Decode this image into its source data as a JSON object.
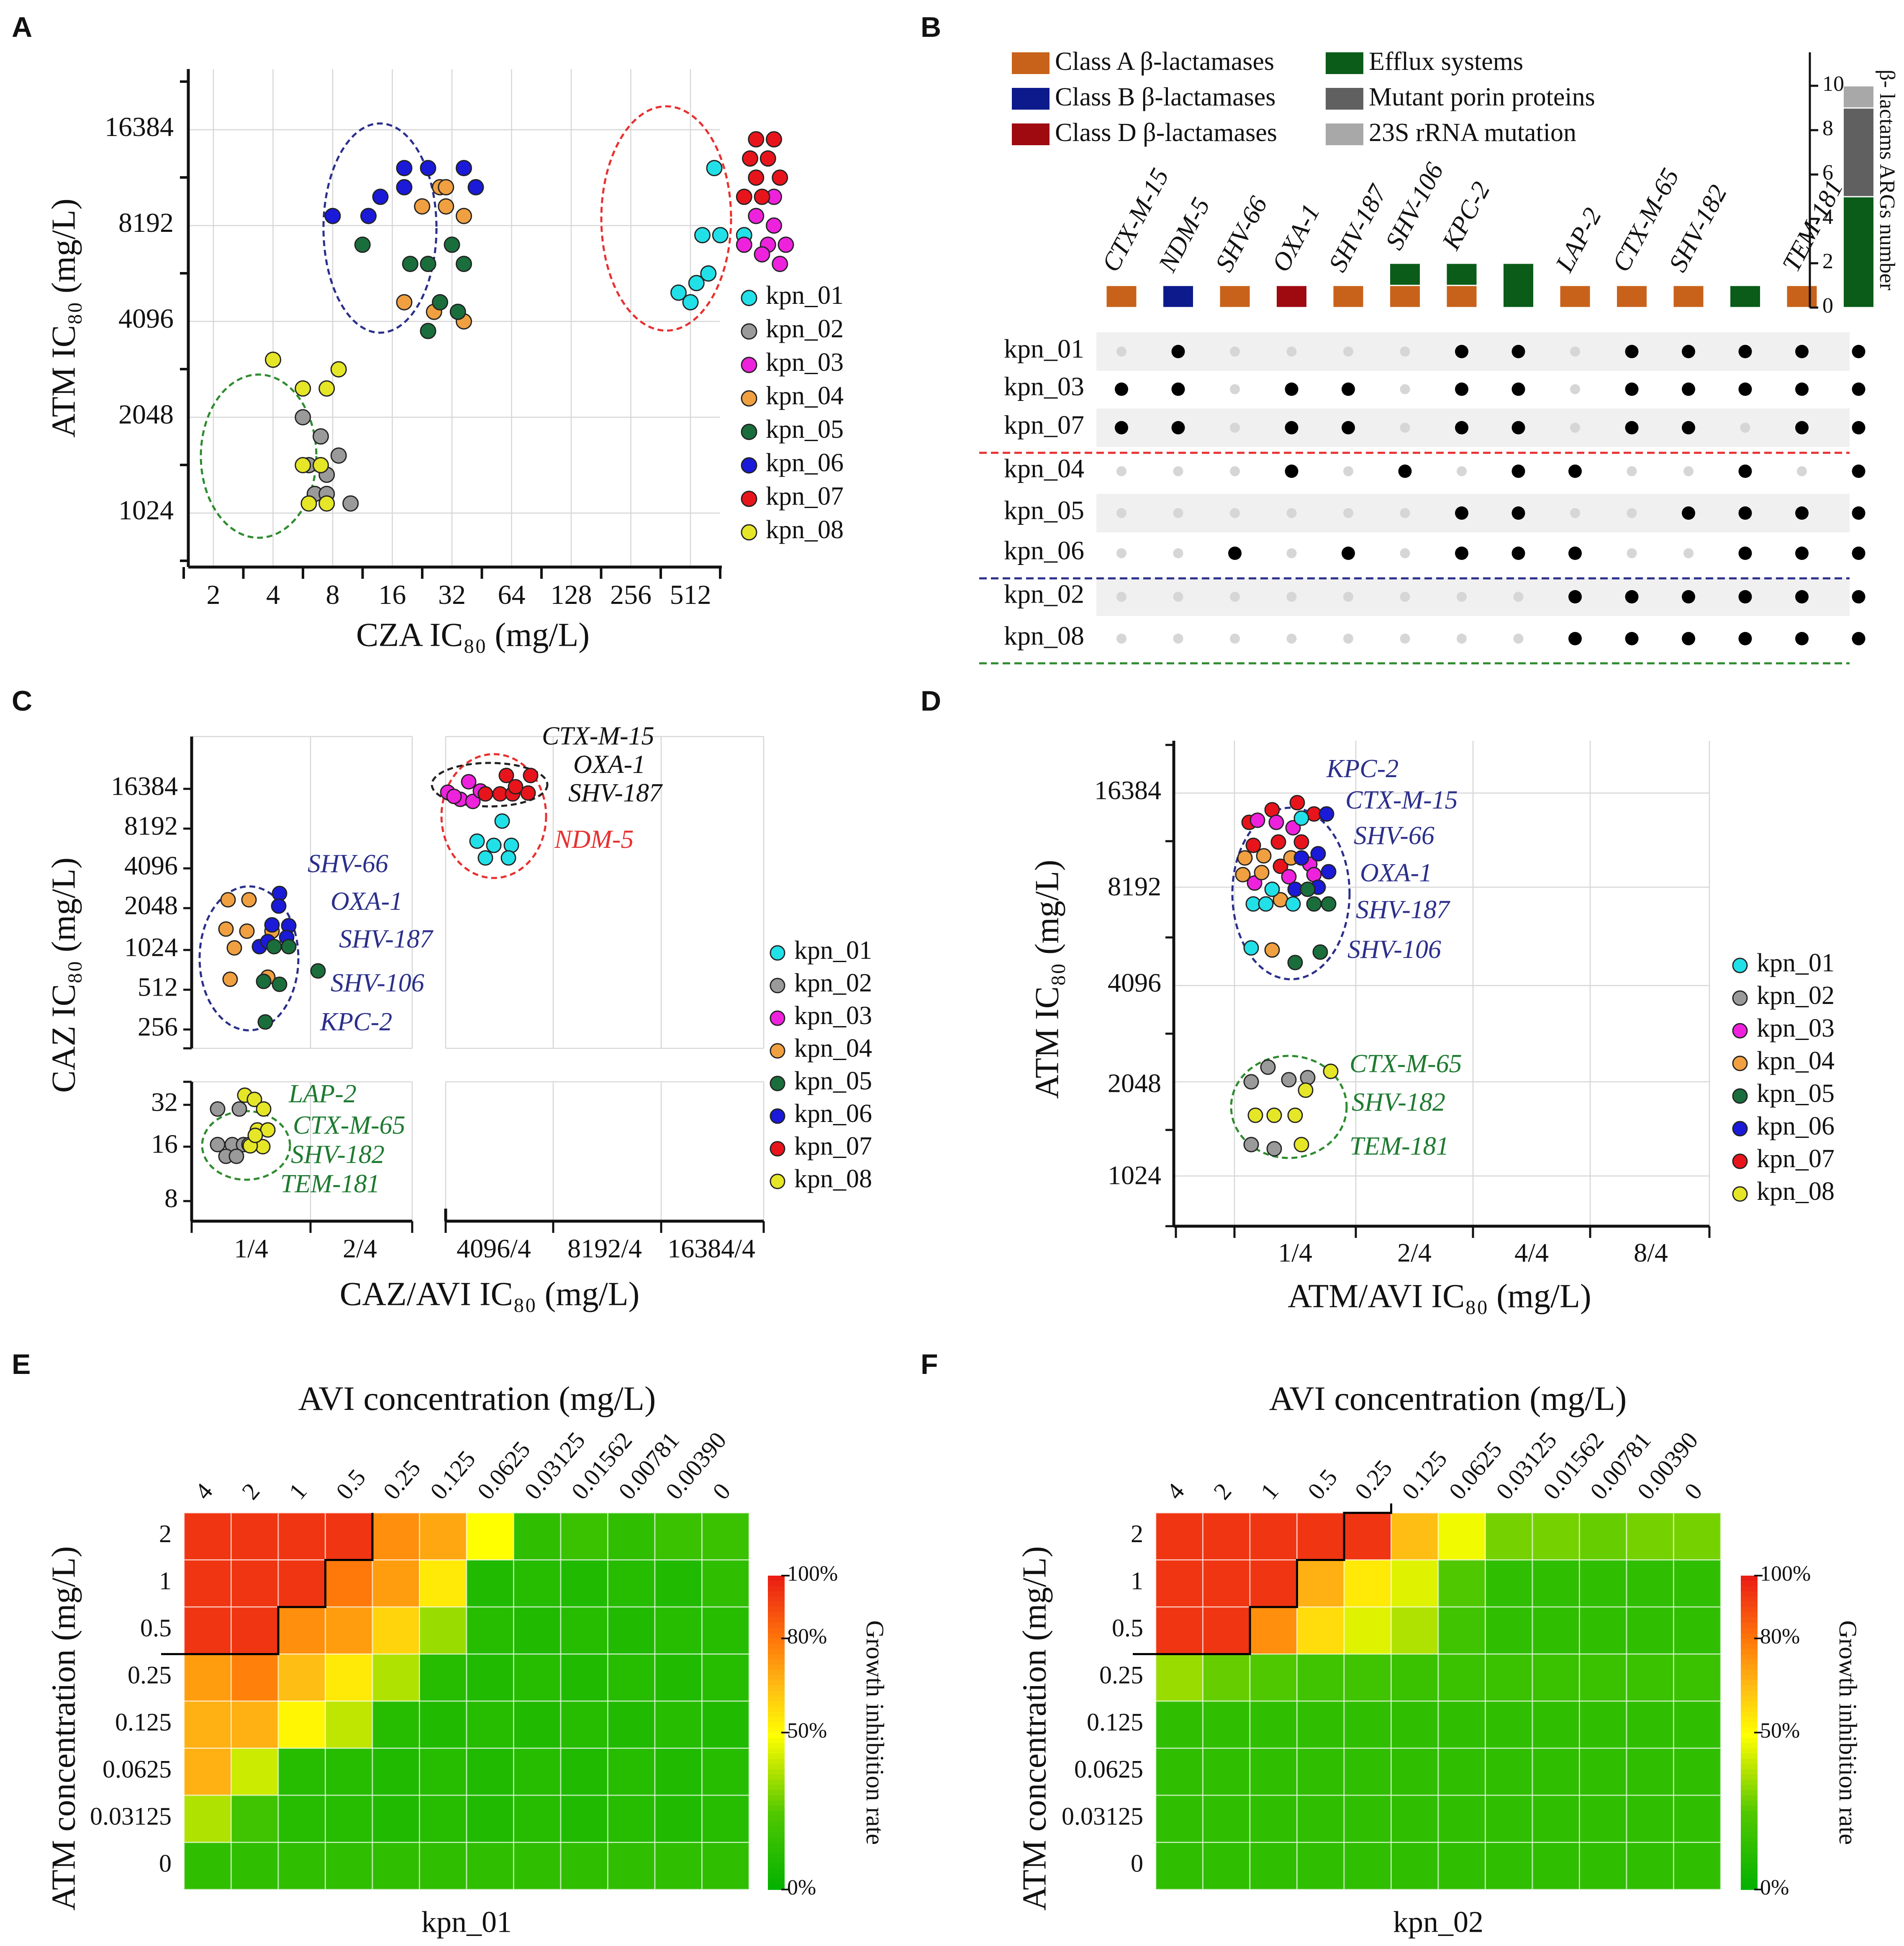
{
  "strains": [
    "kpn_01",
    "kpn_02",
    "kpn_03",
    "kpn_04",
    "kpn_05",
    "kpn_06",
    "kpn_07",
    "kpn_08"
  ],
  "strain_colors": {
    "kpn_01": "#22e0e8",
    "kpn_02": "#9a9a9a",
    "kpn_03": "#ee22dd",
    "kpn_04": "#f0a040",
    "kpn_05": "#1a6e3c",
    "kpn_06": "#1a1ad8",
    "kpn_07": "#e8141c",
    "kpn_08": "#e6e628"
  },
  "panel_letters": [
    "A",
    "B",
    "C",
    "D",
    "E",
    "F"
  ],
  "chart_data": [
    {
      "panel": "A",
      "type": "scatter",
      "xlabel": "CZA IC₈₀ (mg/L)",
      "ylabel": "ATM IC₈₀ (mg/L)",
      "xticks": [
        "2",
        "4",
        "8",
        "16",
        "32",
        "64",
        "128",
        "256",
        "512"
      ],
      "yticks": [
        "1024",
        "2048",
        "4096",
        "8192",
        "16384"
      ],
      "legend": [
        "kpn_01",
        "kpn_02",
        "kpn_03",
        "kpn_04",
        "kpn_05",
        "kpn_06",
        "kpn_07",
        "kpn_08"
      ],
      "points": {
        "kpn_01": [
          [
            9.4,
            13.6
          ],
          [
            9.2,
            12.9
          ],
          [
            9.5,
            12.9
          ],
          [
            8.8,
            12.3
          ],
          [
            9.3,
            12.5
          ],
          [
            9,
            12.2
          ],
          [
            9.1,
            12.4
          ],
          [
            9.9,
            12.9
          ]
        ],
        "kpn_02": [
          [
            2.5,
            11
          ],
          [
            2.8,
            10.8
          ],
          [
            3.1,
            10.6
          ],
          [
            2.6,
            10.5
          ],
          [
            2.9,
            10.4
          ],
          [
            2.7,
            10.2
          ],
          [
            2.9,
            10.2
          ],
          [
            3.3,
            10.1
          ]
        ],
        "kpn_03": [
          [
            10.4,
            13.3
          ],
          [
            10.1,
            13.1
          ],
          [
            10.4,
            13.0
          ],
          [
            10.3,
            12.8
          ],
          [
            10.6,
            12.8
          ],
          [
            9.9,
            12.8
          ],
          [
            10.2,
            12.7
          ],
          [
            10.5,
            12.6
          ]
        ],
        "kpn_04": [
          [
            4.8,
            13.4
          ],
          [
            4.9,
            13.2
          ],
          [
            4.5,
            13.2
          ],
          [
            5.2,
            13.1
          ],
          [
            4.2,
            12.2
          ],
          [
            4.7,
            12.1
          ],
          [
            5.2,
            12.0
          ],
          [
            4.9,
            13.4
          ]
        ],
        "kpn_05": [
          [
            3.5,
            12.8
          ],
          [
            4.3,
            12.6
          ],
          [
            5,
            12.8
          ],
          [
            4.6,
            12.6
          ],
          [
            4.8,
            12.2
          ],
          [
            4.6,
            11.9
          ],
          [
            5.1,
            12.1
          ],
          [
            5.2,
            12.6
          ]
        ],
        "kpn_06": [
          [
            3,
            13.1
          ],
          [
            3.8,
            13.3
          ],
          [
            4.2,
            13.4
          ],
          [
            5.4,
            13.4
          ],
          [
            3.6,
            13.1
          ],
          [
            5.2,
            13.6
          ],
          [
            4.6,
            13.6
          ],
          [
            4.2,
            13.6
          ]
        ],
        "kpn_07": [
          [
            10.1,
            13.9
          ],
          [
            10.4,
            13.9
          ],
          [
            10,
            13.7
          ],
          [
            10.3,
            13.7
          ],
          [
            10.1,
            13.5
          ],
          [
            10.5,
            13.5
          ],
          [
            10.2,
            13.3
          ],
          [
            9.9,
            13.3
          ]
        ],
        "kpn_08": [
          [
            2,
            11.6
          ],
          [
            2.5,
            11.3
          ],
          [
            2.9,
            11.3
          ],
          [
            2.5,
            10.5
          ],
          [
            2.8,
            10.5
          ],
          [
            2.6,
            10.1
          ],
          [
            2.9,
            10.1
          ],
          [
            3.1,
            11.5
          ]
        ]
      }
    },
    {
      "panel": "B",
      "type": "bar",
      "legend": [
        {
          "label": "Class A β-lactamases",
          "color": "#c8621a"
        },
        {
          "label": "Class B β-lactamases",
          "color": "#0c1a8c"
        },
        {
          "label": "Class D β-lactamases",
          "color": "#9e0a10"
        },
        {
          "label": "Efflux systems",
          "color": "#0a5c18"
        },
        {
          "label": "Mutant porin proteins",
          "color": "#606060"
        },
        {
          "label": "23S rRNA mutation",
          "color": "#a8a8a8"
        }
      ],
      "genes": [
        "CTX-M-15",
        "NDM-5",
        "SHV-66",
        "OXA-1",
        "SHV-187",
        "SHV-106",
        "KPC-2",
        "",
        "LAP-2",
        "CTX-M-65",
        "SHV-182",
        "",
        "TEM-181",
        ""
      ],
      "stacks": [
        [
          [
            1,
            "#c8621a"
          ]
        ],
        [
          [
            1,
            "#0c1a8c"
          ]
        ],
        [
          [
            1,
            "#c8621a"
          ]
        ],
        [
          [
            1,
            "#9e0a10"
          ]
        ],
        [
          [
            1,
            "#c8621a"
          ]
        ],
        [
          [
            1,
            "#c8621a"
          ],
          [
            1,
            "#0a5c18"
          ]
        ],
        [
          [
            1,
            "#c8621a"
          ],
          [
            1,
            "#0a5c18"
          ]
        ],
        [
          [
            2,
            "#0a5c18"
          ]
        ],
        [
          [
            1,
            "#c8621a"
          ]
        ],
        [
          [
            1,
            "#c8621a"
          ]
        ],
        [
          [
            1,
            "#c8621a"
          ]
        ],
        [
          [
            1,
            "#0a5c18"
          ]
        ],
        [
          [
            1,
            "#c8621a"
          ]
        ],
        [
          [
            5,
            "#0a5c18"
          ],
          [
            4,
            "#606060"
          ],
          [
            1,
            "#a8a8a8"
          ]
        ]
      ],
      "ylabel": "β- lactams ARGs number",
      "yticks": [
        "0",
        "2",
        "4",
        "6",
        "8",
        "10"
      ],
      "rows": [
        "kpn_01",
        "kpn_03",
        "kpn_07",
        "kpn_04",
        "kpn_05",
        "kpn_06",
        "kpn_02",
        "kpn_08"
      ],
      "matrix": [
        [
          0,
          1,
          0,
          0,
          0,
          0,
          1,
          1,
          0,
          1,
          1,
          1,
          1,
          1
        ],
        [
          1,
          1,
          0,
          1,
          1,
          0,
          1,
          1,
          0,
          1,
          1,
          1,
          1,
          1
        ],
        [
          1,
          1,
          0,
          1,
          1,
          0,
          1,
          1,
          0,
          1,
          1,
          0,
          1,
          1
        ],
        [
          0,
          0,
          0,
          1,
          0,
          1,
          0,
          1,
          1,
          0,
          0,
          1,
          0,
          1
        ],
        [
          0,
          0,
          0,
          0,
          0,
          0,
          1,
          1,
          0,
          0,
          1,
          1,
          1,
          1
        ],
        [
          0,
          0,
          1,
          0,
          1,
          0,
          1,
          1,
          1,
          0,
          0,
          1,
          1,
          1
        ],
        [
          0,
          0,
          0,
          0,
          0,
          0,
          0,
          0,
          1,
          1,
          1,
          1,
          1,
          1
        ],
        [
          0,
          0,
          0,
          0,
          0,
          0,
          0,
          0,
          1,
          1,
          1,
          1,
          1,
          1
        ]
      ]
    },
    {
      "panel": "C",
      "type": "scatter",
      "xlabel": "CAZ/AVI IC₈₀ (mg/L)",
      "ylabel": "CAZ IC₈₀ (mg/L)",
      "xticks_left": [
        "1/4",
        "2/4"
      ],
      "xticks_right": [
        "4096/4",
        "8192/4",
        "16384/4"
      ],
      "yticks_upper": [
        "256",
        "512",
        "1024",
        "2048",
        "4096",
        "8192",
        "16384"
      ],
      "yticks_lower": [
        "8",
        "16",
        "32"
      ],
      "legend": [
        "kpn_01",
        "kpn_02",
        "kpn_03",
        "kpn_04",
        "kpn_05",
        "kpn_06",
        "kpn_07",
        "kpn_08"
      ],
      "annotations_blue": [
        "SHV-66",
        "OXA-1",
        "SHV-187",
        "SHV-106",
        "KPC-2"
      ],
      "annotations_green": [
        "LAP-2",
        "CTX-M-65",
        "SHV-182",
        "TEM-181"
      ],
      "annotations_black": [
        "CTX-M-15",
        "OXA-1",
        "SHV-187"
      ],
      "annotation_red": "NDM-5"
    },
    {
      "panel": "D",
      "type": "scatter",
      "xlabel": "ATM/AVI IC₈₀ (mg/L)",
      "ylabel": "ATM IC₈₀ (mg/L)",
      "xticks": [
        "1/4",
        "2/4",
        "4/4",
        "8/4"
      ],
      "yticks": [
        "1024",
        "2048",
        "4096",
        "8192",
        "16384"
      ],
      "legend": [
        "kpn_01",
        "kpn_02",
        "kpn_03",
        "kpn_04",
        "kpn_05",
        "kpn_06",
        "kpn_07",
        "kpn_08"
      ],
      "annotations_blue": [
        "KPC-2",
        "CTX-M-15",
        "SHV-66",
        "OXA-1",
        "SHV-187",
        "SHV-106"
      ],
      "annotations_green": [
        "CTX-M-65",
        "SHV-182",
        "TEM-181"
      ]
    },
    {
      "panel": "E",
      "type": "heatmap",
      "title": "AVI concentration (mg/L)",
      "ylabel": "ATM concentration (mg/L)",
      "xticks": [
        "4",
        "2",
        "1",
        "0.5",
        "0.25",
        "0.125",
        "0.0625",
        "0.03125",
        "0.01562",
        "0.00781",
        "0.00390",
        "0"
      ],
      "yticks": [
        "2",
        "1",
        "0.5",
        "0.25",
        "0.125",
        "0.0625",
        "0.03125",
        "0"
      ],
      "strain": "kpn_01",
      "colorbar_label": "Growth inhibition rate",
      "colorbar_ticks": [
        "100%",
        "80%",
        "50%",
        "0%"
      ],
      "values": [
        [
          95,
          95,
          95,
          95,
          75,
          70,
          50,
          15,
          18,
          15,
          18,
          18
        ],
        [
          95,
          95,
          95,
          80,
          72,
          55,
          10,
          12,
          10,
          12,
          10,
          15
        ],
        [
          95,
          95,
          75,
          72,
          60,
          35,
          12,
          10,
          12,
          10,
          12,
          12
        ],
        [
          72,
          78,
          65,
          55,
          38,
          12,
          10,
          12,
          10,
          12,
          10,
          12
        ],
        [
          68,
          68,
          52,
          40,
          12,
          10,
          12,
          10,
          12,
          10,
          12,
          10
        ],
        [
          68,
          42,
          12,
          12,
          10,
          12,
          10,
          12,
          10,
          12,
          10,
          12
        ],
        [
          38,
          20,
          12,
          12,
          10,
          12,
          10,
          12,
          10,
          12,
          10,
          12
        ],
        [
          15,
          15,
          15,
          15,
          15,
          15,
          15,
          15,
          15,
          15,
          15,
          15
        ]
      ]
    },
    {
      "panel": "F",
      "type": "heatmap",
      "title": "AVI concentration (mg/L)",
      "ylabel": "ATM concentration (mg/L)",
      "xticks": [
        "4",
        "2",
        "1",
        "0.5",
        "0.25",
        "0.125",
        "0.0625",
        "0.03125",
        "0.01562",
        "0.00781",
        "0.00390",
        "0"
      ],
      "yticks": [
        "2",
        "1",
        "0.5",
        "0.25",
        "0.125",
        "0.0625",
        "0.03125",
        "0"
      ],
      "strain": "kpn_02",
      "colorbar_label": "Growth inhibition rate",
      "colorbar_ticks": [
        "100%",
        "80%",
        "50%",
        "0%"
      ],
      "values": [
        [
          95,
          95,
          95,
          95,
          95,
          65,
          48,
          30,
          30,
          28,
          30,
          30
        ],
        [
          95,
          95,
          95,
          68,
          55,
          45,
          25,
          15,
          15,
          15,
          15,
          15
        ],
        [
          95,
          95,
          75,
          58,
          45,
          38,
          20,
          15,
          15,
          15,
          15,
          15
        ],
        [
          35,
          28,
          25,
          20,
          20,
          18,
          18,
          18,
          18,
          18,
          18,
          18
        ],
        [
          15,
          15,
          15,
          15,
          15,
          15,
          15,
          15,
          15,
          15,
          15,
          15
        ],
        [
          15,
          15,
          15,
          15,
          15,
          15,
          15,
          15,
          15,
          15,
          15,
          15
        ],
        [
          15,
          15,
          15,
          15,
          15,
          15,
          15,
          15,
          15,
          15,
          15,
          15
        ],
        [
          15,
          15,
          15,
          15,
          15,
          15,
          15,
          15,
          15,
          15,
          15,
          15
        ]
      ]
    }
  ]
}
